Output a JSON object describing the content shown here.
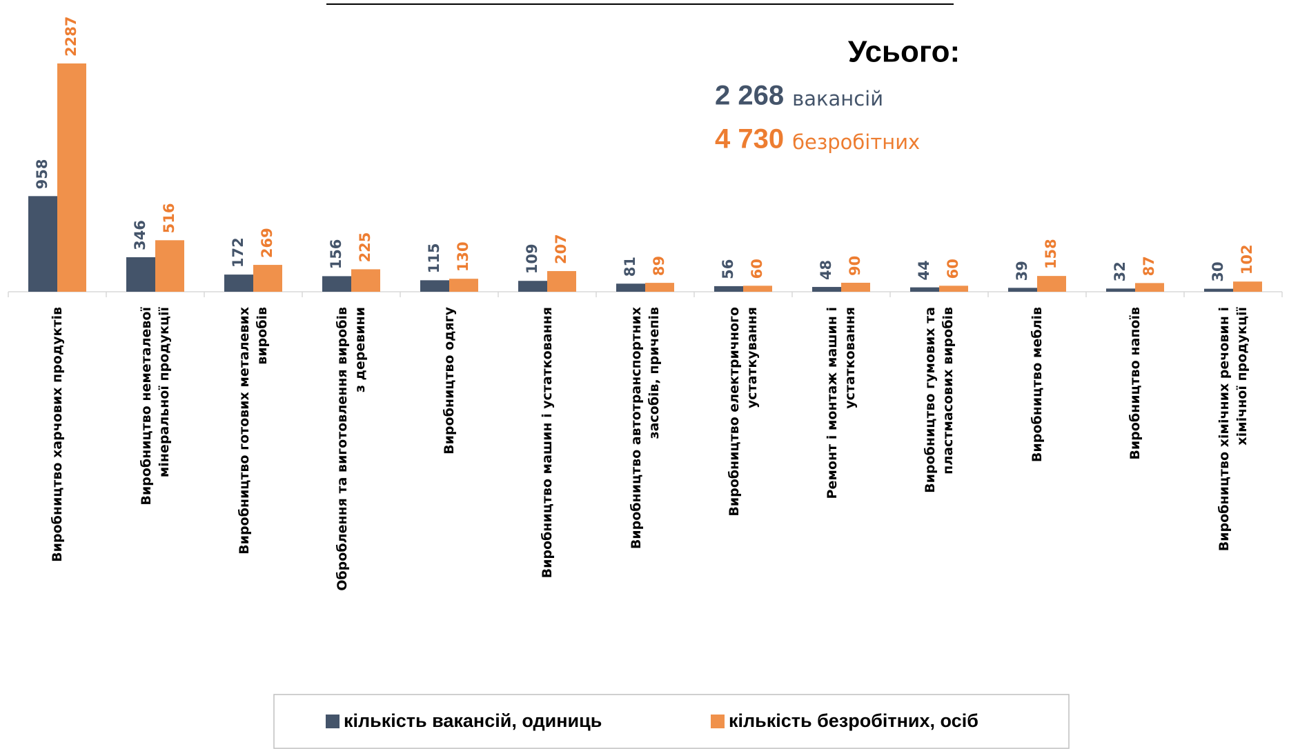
{
  "chart_data": {
    "type": "bar",
    "categories": [
      "Виробництво харчових продуктів",
      "Виробництво неметалевої\nмінеральної продукції",
      "Виробництво готових металевих\nвиробів",
      "Оброблення  та виготовлення виробів\nз деревини",
      "Виробництво одягу",
      "Виробництво машин і устатковання",
      "Виробництво автотранспортних\nзасобів, причепів",
      "Виробництво електричного\nустаткування",
      "Ремонт і монтаж машин і\nустатковання",
      "Виробництво гумових та\nпластмасових виробів",
      "Виробництво меблів",
      "Виробництво напоїв",
      "Виробництво хімічних речовин і\nхімічної продукції"
    ],
    "series": [
      {
        "name": "кількість вакансій, одиниць",
        "color": "#44546a",
        "label_color": "#44546a",
        "values": [
          958,
          346,
          172,
          156,
          115,
          109,
          81,
          56,
          48,
          44,
          39,
          32,
          30
        ]
      },
      {
        "name": "кількість безробітних, осіб",
        "color": "#f0914b",
        "label_color": "#ed7d31",
        "values": [
          2287,
          516,
          269,
          225,
          130,
          207,
          89,
          60,
          90,
          60,
          158,
          87,
          102
        ]
      }
    ],
    "annotations": {
      "heading": "Усього:",
      "total_vacancies": "2 268",
      "vacancies_unit": "вакансій",
      "total_unemployed": "4 730",
      "unemployed_unit": "безробітних"
    },
    "legend": "bottom"
  }
}
